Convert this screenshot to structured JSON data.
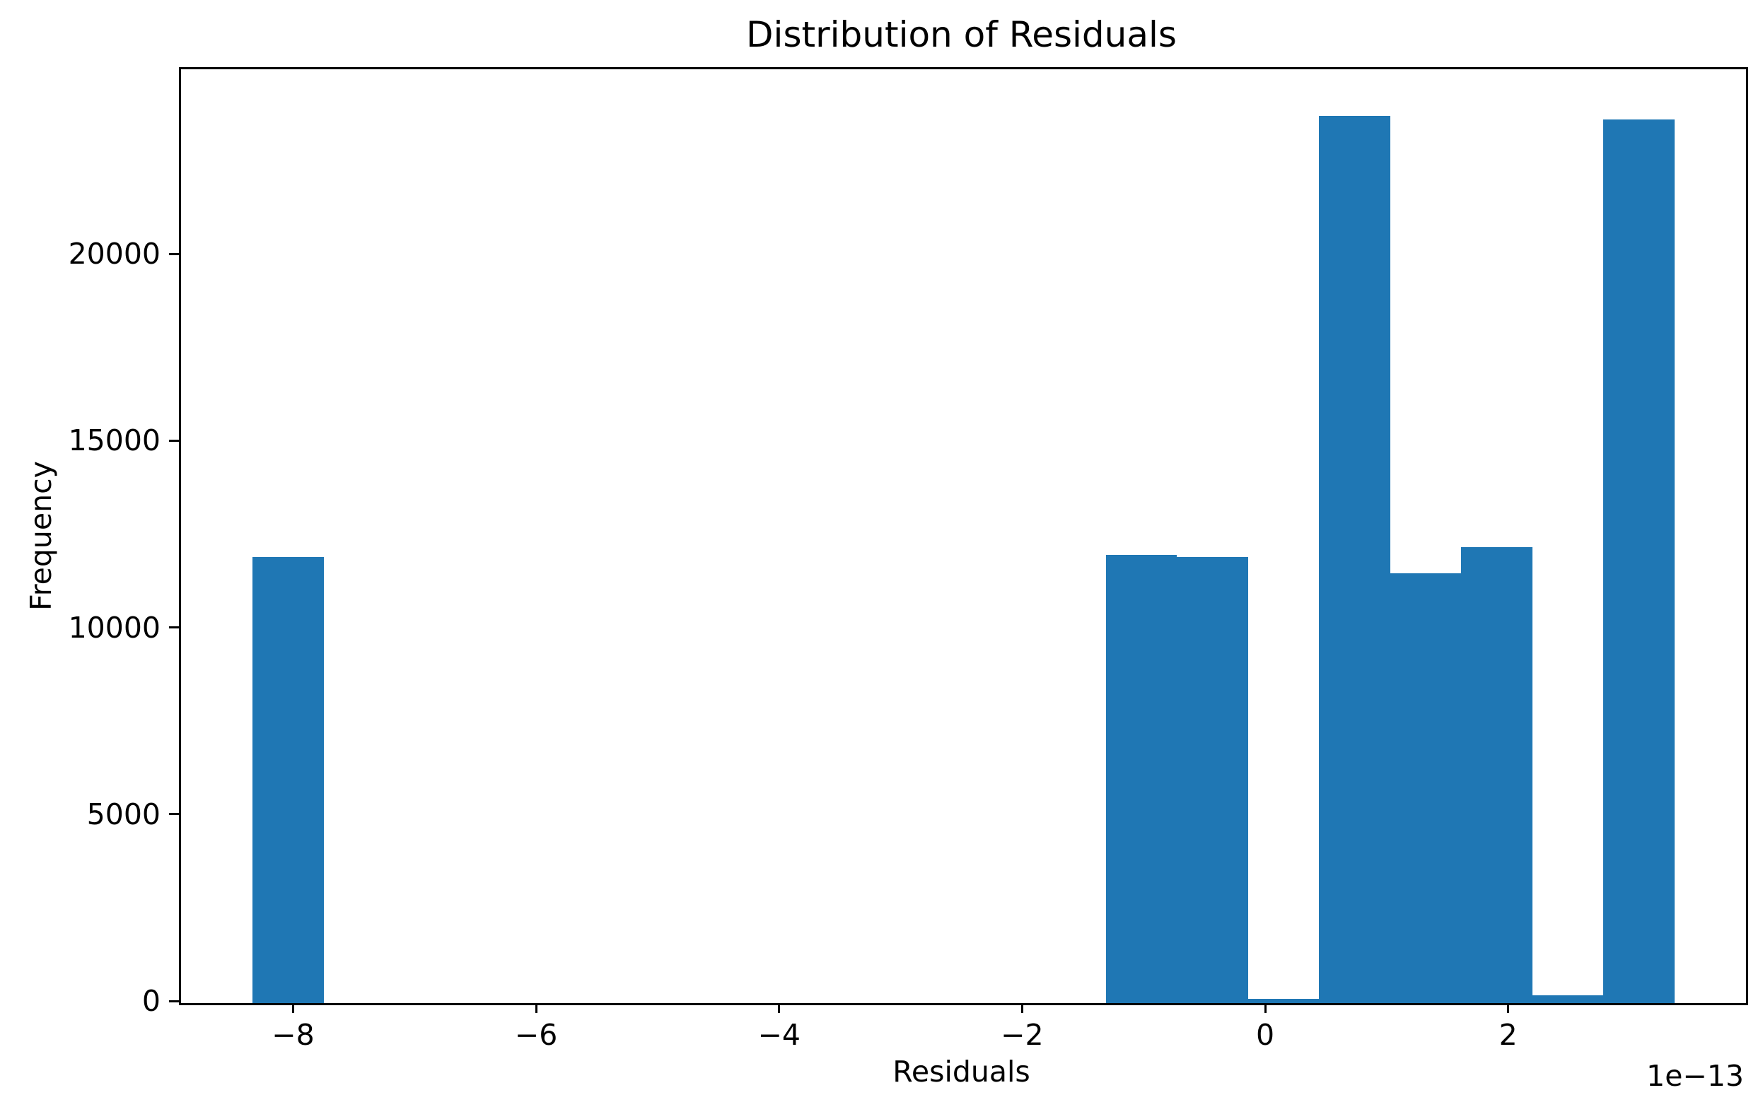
{
  "figure": {
    "background_color": "#ffffff",
    "text_color": "#000000"
  },
  "chart_data": {
    "type": "bar",
    "subtype": "histogram",
    "title": "Distribution of Residuals",
    "xlabel": "Residuals",
    "ylabel": "Frequency",
    "x_offset_label": "1e−13",
    "x_unit_multiplier": "1e-13",
    "bar_color": "#1f77b4",
    "grid": false,
    "legend": "none",
    "xlim": [
      -8.94,
      3.94
    ],
    "ylim": [
      0,
      25000
    ],
    "bin_edges_1e13": [
      -8.35,
      -7.765,
      -7.18,
      -6.595,
      -6.01,
      -5.425,
      -4.84,
      -4.255,
      -3.67,
      -3.085,
      -2.5,
      -1.915,
      -1.33,
      -0.745,
      -0.16,
      0.425,
      1.01,
      1.595,
      2.18,
      2.765,
      3.35
    ],
    "counts": [
      11950,
      0,
      0,
      0,
      0,
      0,
      0,
      0,
      0,
      0,
      0,
      0,
      12000,
      11940,
      120,
      23750,
      11500,
      12200,
      200,
      23650
    ],
    "x_ticks": [
      {
        "value": -8,
        "label": "−8"
      },
      {
        "value": -6,
        "label": "−6"
      },
      {
        "value": -4,
        "label": "−4"
      },
      {
        "value": -2,
        "label": "−2"
      },
      {
        "value": 0,
        "label": "0"
      },
      {
        "value": 2,
        "label": "2"
      }
    ],
    "y_ticks": [
      {
        "value": 0,
        "label": "0"
      },
      {
        "value": 5000,
        "label": "5000"
      },
      {
        "value": 10000,
        "label": "10000"
      },
      {
        "value": 15000,
        "label": "15000"
      },
      {
        "value": 20000,
        "label": "20000"
      }
    ]
  }
}
